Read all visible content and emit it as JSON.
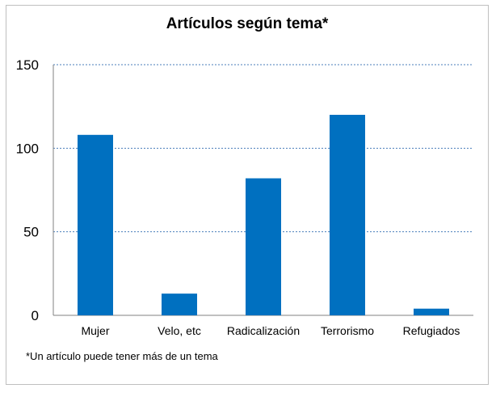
{
  "chart_data": {
    "type": "bar",
    "title": "Artículos según tema*",
    "categories": [
      "Mujer",
      "Velo, etc",
      "Radicalización",
      "Terrorismo",
      "Refugiados"
    ],
    "values": [
      108,
      13,
      82,
      120,
      4
    ],
    "ylim": [
      0,
      150
    ],
    "yticks": [
      0,
      50,
      100,
      150
    ],
    "grid": true,
    "bar_color": "#0070C0",
    "grid_color": "#4A7EBB",
    "footnote": "*Un artículo puede tener más de un tema"
  }
}
